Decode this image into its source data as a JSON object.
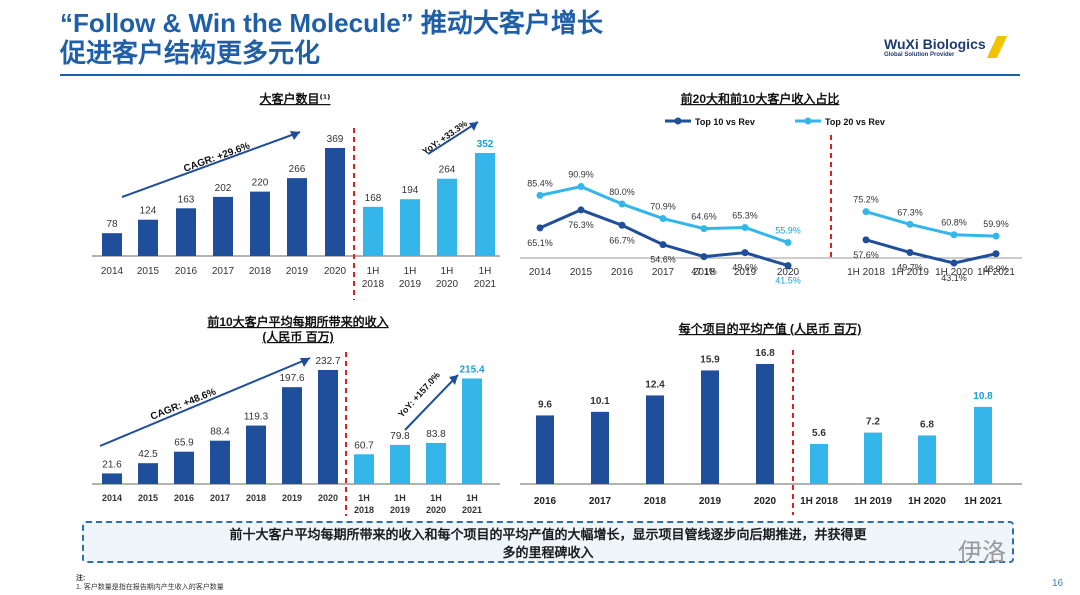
{
  "title": {
    "line1": "“Follow & Win the Molecule” 推动大客户增长",
    "line2": "促进客户结构更多元化"
  },
  "logo": {
    "name": "WuXi Biologics",
    "tagline": "Global Solution Provider"
  },
  "colors": {
    "dark": "#1f4e9a",
    "light": "#34b6ea",
    "divider": "#e02020"
  },
  "chart_data": [
    {
      "type": "bar",
      "title": "大客户数目⁽¹⁾",
      "categories": [
        "2014",
        "2015",
        "2016",
        "2017",
        "2018",
        "2019",
        "2020",
        "1H 2018",
        "1H 2019",
        "1H 2020",
        "1H 2021"
      ],
      "values": [
        78,
        124,
        163,
        202,
        220,
        266,
        369,
        168,
        194,
        264,
        352
      ],
      "annotations": [
        "CAGR: +29.6%",
        "YoY: +33.3%"
      ]
    },
    {
      "type": "line",
      "title": "前20大和前10大客户收入占比",
      "categories": [
        "2014",
        "2015",
        "2016",
        "2017",
        "2018",
        "2019",
        "2020",
        "1H 2018",
        "1H 2019",
        "1H 2020",
        "1H 2021"
      ],
      "series": [
        {
          "name": "Top 10 vs Rev",
          "values": [
            65.1,
            76.3,
            66.7,
            54.6,
            47.1,
            49.6,
            41.5,
            57.6,
            49.7,
            43.1,
            48.9
          ]
        },
        {
          "name": "Top 20 vs Rev",
          "values": [
            85.4,
            90.9,
            80.0,
            70.9,
            64.6,
            65.3,
            55.9,
            75.2,
            67.3,
            60.8,
            59.9
          ]
        }
      ]
    },
    {
      "type": "bar",
      "title": "前10大客户平均每期所带来的收入",
      "subtitle": "(人民币 百万)",
      "categories": [
        "2014",
        "2015",
        "2016",
        "2017",
        "2018",
        "2019",
        "2020",
        "1H 2018",
        "1H 2019",
        "1H 2020",
        "1H 2021"
      ],
      "values": [
        21.6,
        42.5,
        65.9,
        88.4,
        119.3,
        197.6,
        232.7,
        60.7,
        79.8,
        83.8,
        215.4
      ],
      "annotations": [
        "CAGR: +48.6%",
        "YoY: +157.0%"
      ]
    },
    {
      "type": "bar",
      "title": "每个项目的平均产值 (人民币 百万)",
      "categories": [
        "2016",
        "2017",
        "2018",
        "2019",
        "2020",
        "1H 2018",
        "1H 2019",
        "1H 2020",
        "1H 2021"
      ],
      "values": [
        9.6,
        10.1,
        12.4,
        15.9,
        16.8,
        5.6,
        7.2,
        6.8,
        10.8
      ]
    }
  ],
  "message": {
    "line1": "前十大客户平均每期所带来的收入和每个项目的平均产值的大幅增长，显示项目管线逐步向后期推进，并获得更",
    "line2": "多的里程碑收入"
  },
  "note": {
    "label": "注:",
    "text": "1. 客户数量是指在报告期内产生收入的客户数量"
  },
  "page_number": "16",
  "watermark": "伊洛"
}
